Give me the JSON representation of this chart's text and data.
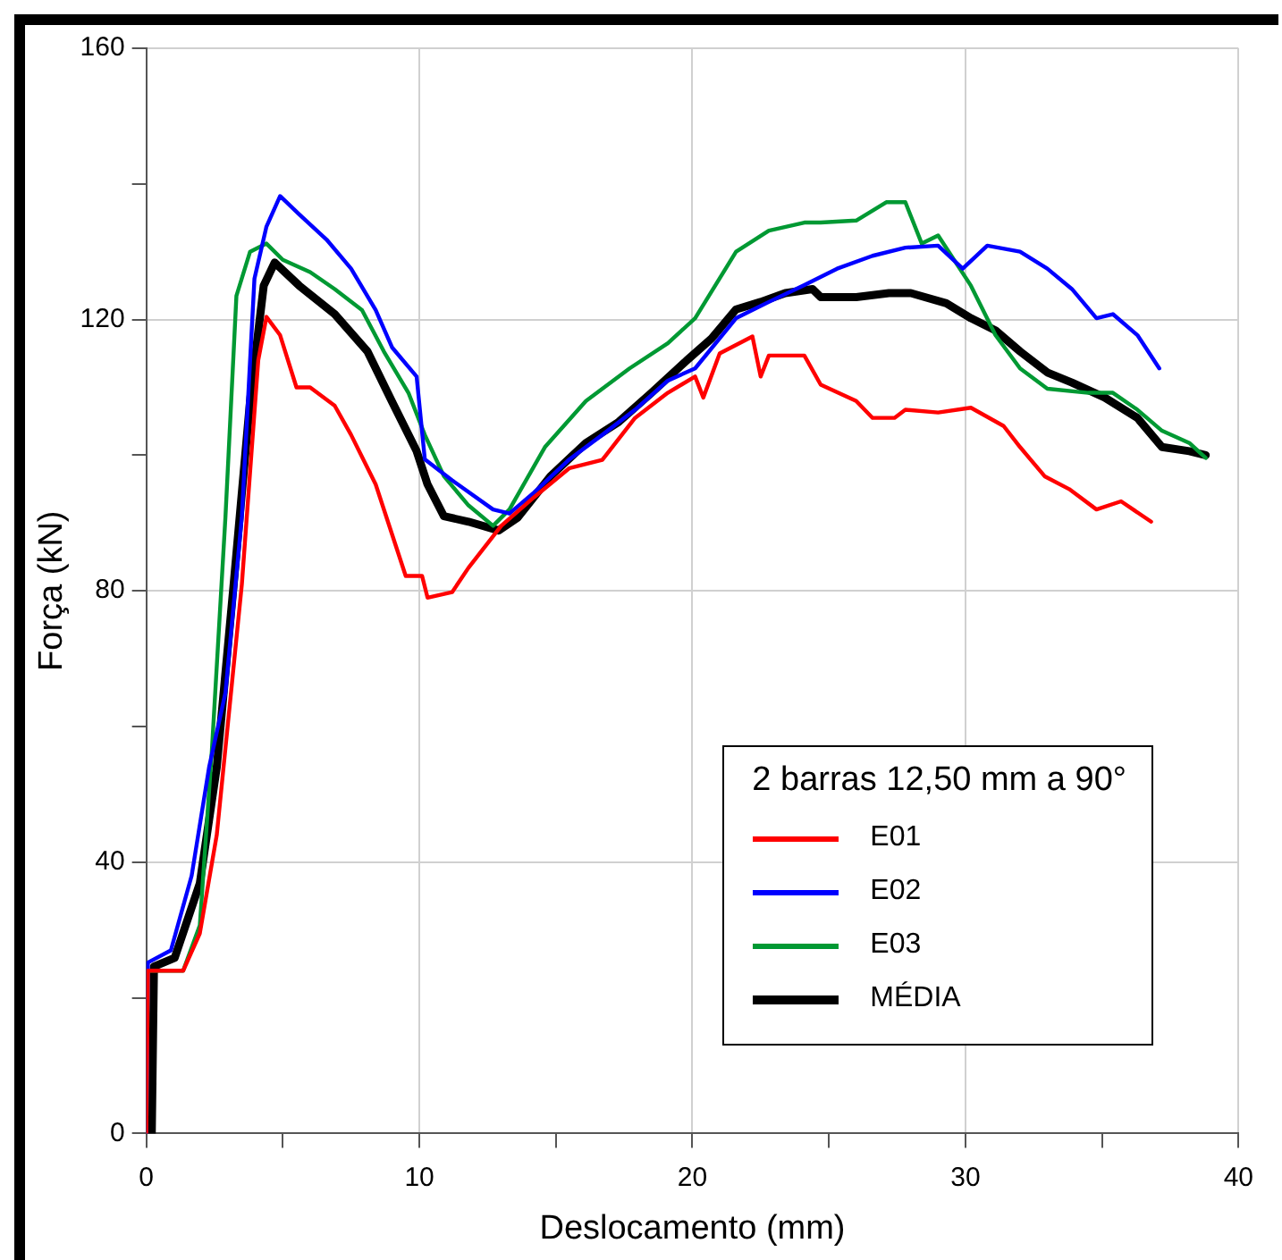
{
  "chart_data": {
    "type": "line",
    "xlabel": "Deslocamento (mm)",
    "ylabel": "Força (kN)",
    "legend_title": "2 barras 12,50 mm a 90°",
    "xlim": [
      0,
      40
    ],
    "xticks": [
      0,
      {
        "value": 5,
        "label": null
      },
      10,
      {
        "value": 15,
        "label": null
      },
      20,
      {
        "value": 25,
        "label": null
      },
      30,
      {
        "value": 35,
        "label": null
      },
      40
    ],
    "ylim": [
      0,
      160
    ],
    "yticks": [
      0,
      {
        "value": 20,
        "label": null
      },
      40,
      {
        "value": 60,
        "label": null
      },
      80,
      {
        "value": 100,
        "label": null
      },
      120,
      {
        "value": 140,
        "label": null
      },
      160
    ],
    "grid": true,
    "legend": "bottom right",
    "marker": "none",
    "line_style": "solid",
    "series": [
      {
        "name": "E01",
        "color": "#ff0000",
        "x": [
          0,
          0.06,
          1.35,
          1.96,
          2.58,
          3.5,
          4.1,
          4.4,
          4.9,
          5.5,
          6.0,
          6.9,
          7.5,
          8.4,
          9.5,
          10.1,
          10.3,
          11.2,
          11.8,
          13.0,
          14.2,
          15.5,
          16.7,
          17.9,
          19.1,
          20.1,
          20.4,
          21.0,
          22.2,
          22.5,
          22.8,
          24.1,
          24.7,
          26.0,
          26.6,
          27.4,
          27.8,
          29.0,
          30.2,
          31.4,
          32.0,
          32.9,
          33.8,
          34.8,
          35.7,
          36.8
        ],
        "values": [
          0,
          24,
          24,
          29.5,
          44,
          81,
          114,
          120.4,
          117.7,
          110,
          110,
          107.3,
          103,
          95.7,
          82.2,
          82.2,
          79,
          79.8,
          83.4,
          89.6,
          93.8,
          98.1,
          99.3,
          105.5,
          109.2,
          111.6,
          108.5,
          115,
          117.5,
          111.6,
          114.7,
          114.7,
          110.4,
          108,
          105.5,
          105.5,
          106.7,
          106.3,
          107,
          104.3,
          101.2,
          96.9,
          95,
          92,
          93.2,
          90.2
        ]
      },
      {
        "name": "E02",
        "color": "#0000ff",
        "x": [
          0,
          0.06,
          0.9,
          1.66,
          2.3,
          2.9,
          3.5,
          3.96,
          4.4,
          4.9,
          5.6,
          6.6,
          7.5,
          8.4,
          9.0,
          9.9,
          10.2,
          11.2,
          12.7,
          13.3,
          14.2,
          15.5,
          16.7,
          17.9,
          19.1,
          20.1,
          21.6,
          22.8,
          24.1,
          25.3,
          26.6,
          27.8,
          29.0,
          29.9,
          30.8,
          32.0,
          33.0,
          33.9,
          34.8,
          35.4,
          36.3,
          37.1
        ],
        "values": [
          0,
          25.2,
          27,
          38,
          54,
          65,
          91,
          126,
          133.7,
          138.2,
          135.5,
          131.8,
          127.5,
          121.4,
          115.9,
          111.6,
          99.4,
          96.3,
          92,
          91.4,
          94.5,
          99.4,
          103,
          106.7,
          111,
          112.8,
          120.2,
          122.6,
          125.1,
          127.5,
          129.4,
          130.6,
          130.9,
          127.5,
          130.9,
          130,
          127.5,
          124.5,
          120.2,
          120.8,
          117.7,
          112.8
        ]
      },
      {
        "name": "E03",
        "color": "#009933",
        "x": [
          0,
          0.06,
          1.35,
          1.96,
          2.4,
          2.9,
          3.3,
          3.8,
          4.4,
          5.0,
          6.0,
          6.9,
          7.9,
          8.7,
          9.6,
          10.2,
          10.9,
          11.8,
          12.7,
          13.3,
          14.6,
          16.1,
          17.7,
          19.1,
          20.1,
          21.6,
          22.8,
          24.1,
          24.7,
          26.0,
          27.1,
          27.8,
          28.4,
          29.0,
          30.2,
          31.1,
          32.0,
          33.0,
          34.5,
          35.4,
          36.3,
          37.2,
          38.2,
          38.8
        ],
        "values": [
          0,
          24,
          24,
          30.7,
          56.4,
          91,
          123.5,
          130,
          131.2,
          128.8,
          127,
          124.5,
          121.4,
          115.3,
          109.2,
          103,
          96.9,
          92.6,
          89.6,
          92,
          101.2,
          108,
          112.8,
          116.5,
          120.2,
          130,
          133.1,
          134.3,
          134.3,
          134.6,
          137.3,
          137.3,
          131.2,
          132.4,
          125,
          117.7,
          112.8,
          109.8,
          109.2,
          109.2,
          106.7,
          103.6,
          101.8,
          99.6
        ]
      },
      {
        "name": "MÉDIA",
        "color": "#000000",
        "x": [
          0.2,
          0.28,
          1.04,
          1.96,
          2.58,
          3.2,
          3.8,
          4.3,
          4.7,
          5.6,
          6.9,
          8.1,
          9.0,
          9.9,
          10.3,
          10.9,
          11.8,
          12.9,
          13.6,
          14.8,
          16.1,
          17.3,
          18.5,
          19.8,
          20.7,
          21.6,
          22.5,
          23.4,
          24.4,
          24.7,
          26.0,
          27.2,
          28.0,
          29.3,
          30.2,
          31.1,
          32.0,
          33.0,
          33.9,
          35.1,
          36.3,
          37.2,
          38.2,
          38.8
        ],
        "values": [
          0,
          24.6,
          25.9,
          36.9,
          54,
          81,
          108,
          125,
          128.4,
          125,
          120.8,
          115.3,
          107.9,
          100.6,
          95.7,
          91,
          90.2,
          88.9,
          90.8,
          96.9,
          101.8,
          104.9,
          109.2,
          114,
          117.2,
          121.5,
          122.6,
          123.9,
          124.5,
          123.3,
          123.3,
          123.9,
          123.9,
          122.4,
          120.2,
          118.4,
          115.3,
          112.2,
          110.7,
          108.5,
          105.5,
          101.2,
          100.6,
          100
        ]
      }
    ]
  }
}
